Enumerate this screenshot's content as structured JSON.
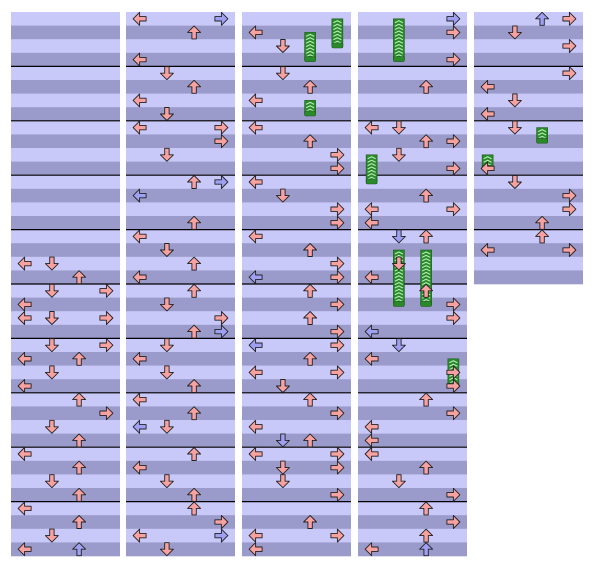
{
  "chart_data": {
    "type": "step-chart",
    "lane_order": [
      "left",
      "down",
      "up",
      "right"
    ],
    "rows_per_measure": 4,
    "colors": {
      "row_light": "#c9c9f9",
      "row_dark": "#9b9bcb",
      "measure_line": "#000000",
      "arrow_red": "#f7a1a1",
      "arrow_blue": "#9f9ff3",
      "hold_body": "#2a8a2a",
      "hold_stripe": "#b9ecb9",
      "arrow_outline": "#222222"
    },
    "columns": [
      {
        "measures": 10,
        "notes": [
          {
            "row": 18,
            "lane": "left",
            "color": "red"
          },
          {
            "row": 18,
            "lane": "down",
            "color": "red"
          },
          {
            "row": 19,
            "lane": "up",
            "color": "red"
          },
          {
            "row": 20,
            "lane": "down",
            "color": "red"
          },
          {
            "row": 20,
            "lane": "right",
            "color": "red"
          },
          {
            "row": 21,
            "lane": "left",
            "color": "red"
          },
          {
            "row": 22,
            "lane": "down",
            "color": "red"
          },
          {
            "row": 22,
            "lane": "left",
            "color": "red"
          },
          {
            "row": 22,
            "lane": "right",
            "color": "red"
          },
          {
            "row": 24,
            "lane": "down",
            "color": "red"
          },
          {
            "row": 24,
            "lane": "right",
            "color": "red"
          },
          {
            "row": 25,
            "lane": "up",
            "color": "red"
          },
          {
            "row": 25,
            "lane": "left",
            "color": "red"
          },
          {
            "row": 26,
            "lane": "down",
            "color": "red"
          },
          {
            "row": 27,
            "lane": "left",
            "color": "red"
          },
          {
            "row": 28,
            "lane": "up",
            "color": "red"
          },
          {
            "row": 29,
            "lane": "right",
            "color": "red"
          },
          {
            "row": 30,
            "lane": "down",
            "color": "red"
          },
          {
            "row": 31,
            "lane": "up",
            "color": "red"
          },
          {
            "row": 32,
            "lane": "left",
            "color": "red"
          },
          {
            "row": 33,
            "lane": "up",
            "color": "red"
          },
          {
            "row": 34,
            "lane": "down",
            "color": "red"
          },
          {
            "row": 35,
            "lane": "up",
            "color": "red"
          },
          {
            "row": 36,
            "lane": "left",
            "color": "red"
          },
          {
            "row": 37,
            "lane": "up",
            "color": "red"
          },
          {
            "row": 38,
            "lane": "down",
            "color": "red"
          },
          {
            "row": 39,
            "lane": "left",
            "color": "red"
          },
          {
            "row": 39,
            "lane": "up",
            "color": "blue"
          }
        ],
        "holds": []
      },
      {
        "measures": 10,
        "notes": [
          {
            "row": 0,
            "lane": "left",
            "color": "red"
          },
          {
            "row": 0,
            "lane": "right",
            "color": "blue"
          },
          {
            "row": 1,
            "lane": "up",
            "color": "red"
          },
          {
            "row": 3,
            "lane": "left",
            "color": "red"
          },
          {
            "row": 4,
            "lane": "down",
            "color": "red"
          },
          {
            "row": 5,
            "lane": "up",
            "color": "red"
          },
          {
            "row": 6,
            "lane": "left",
            "color": "red"
          },
          {
            "row": 7,
            "lane": "down",
            "color": "red"
          },
          {
            "row": 8,
            "lane": "left",
            "color": "red"
          },
          {
            "row": 8,
            "lane": "right",
            "color": "red"
          },
          {
            "row": 9,
            "lane": "right",
            "color": "red"
          },
          {
            "row": 10,
            "lane": "down",
            "color": "red"
          },
          {
            "row": 12,
            "lane": "up",
            "color": "red"
          },
          {
            "row": 12,
            "lane": "right",
            "color": "blue"
          },
          {
            "row": 13,
            "lane": "left",
            "color": "blue"
          },
          {
            "row": 15,
            "lane": "up",
            "color": "red"
          },
          {
            "row": 16,
            "lane": "left",
            "color": "red"
          },
          {
            "row": 17,
            "lane": "down",
            "color": "red"
          },
          {
            "row": 18,
            "lane": "up",
            "color": "red"
          },
          {
            "row": 19,
            "lane": "left",
            "color": "red"
          },
          {
            "row": 20,
            "lane": "up",
            "color": "red"
          },
          {
            "row": 21,
            "lane": "down",
            "color": "red"
          },
          {
            "row": 22,
            "lane": "right",
            "color": "red"
          },
          {
            "row": 23,
            "lane": "up",
            "color": "red"
          },
          {
            "row": 23,
            "lane": "right",
            "color": "blue"
          },
          {
            "row": 24,
            "lane": "down",
            "color": "red"
          },
          {
            "row": 25,
            "lane": "left",
            "color": "red"
          },
          {
            "row": 26,
            "lane": "down",
            "color": "red"
          },
          {
            "row": 27,
            "lane": "up",
            "color": "red"
          },
          {
            "row": 28,
            "lane": "left",
            "color": "red"
          },
          {
            "row": 29,
            "lane": "up",
            "color": "red"
          },
          {
            "row": 30,
            "lane": "left",
            "color": "blue"
          },
          {
            "row": 30,
            "lane": "down",
            "color": "red"
          },
          {
            "row": 32,
            "lane": "up",
            "color": "red"
          },
          {
            "row": 33,
            "lane": "left",
            "color": "red"
          },
          {
            "row": 34,
            "lane": "down",
            "color": "red"
          },
          {
            "row": 35,
            "lane": "up",
            "color": "red"
          },
          {
            "row": 36,
            "lane": "up",
            "color": "red"
          },
          {
            "row": 37,
            "lane": "right",
            "color": "red"
          },
          {
            "row": 38,
            "lane": "left",
            "color": "red"
          },
          {
            "row": 38,
            "lane": "right",
            "color": "blue"
          },
          {
            "row": 39,
            "lane": "down",
            "color": "red"
          }
        ],
        "holds": []
      },
      {
        "measures": 10,
        "notes": [
          {
            "row": 1,
            "lane": "left",
            "color": "red"
          },
          {
            "row": 2,
            "lane": "down",
            "color": "red"
          },
          {
            "row": 4,
            "lane": "down",
            "color": "red"
          },
          {
            "row": 5,
            "lane": "up",
            "color": "red"
          },
          {
            "row": 6,
            "lane": "left",
            "color": "red"
          },
          {
            "row": 8,
            "lane": "left",
            "color": "red"
          },
          {
            "row": 9,
            "lane": "up",
            "color": "red"
          },
          {
            "row": 10,
            "lane": "right",
            "color": "red"
          },
          {
            "row": 11,
            "lane": "right",
            "color": "red"
          },
          {
            "row": 12,
            "lane": "left",
            "color": "red"
          },
          {
            "row": 13,
            "lane": "down",
            "color": "red"
          },
          {
            "row": 14,
            "lane": "right",
            "color": "red"
          },
          {
            "row": 15,
            "lane": "right",
            "color": "red"
          },
          {
            "row": 16,
            "lane": "left",
            "color": "red"
          },
          {
            "row": 17,
            "lane": "up",
            "color": "red"
          },
          {
            "row": 18,
            "lane": "right",
            "color": "red"
          },
          {
            "row": 19,
            "lane": "left",
            "color": "blue"
          },
          {
            "row": 19,
            "lane": "right",
            "color": "red"
          },
          {
            "row": 20,
            "lane": "up",
            "color": "red"
          },
          {
            "row": 21,
            "lane": "right",
            "color": "red"
          },
          {
            "row": 22,
            "lane": "up",
            "color": "red"
          },
          {
            "row": 23,
            "lane": "right",
            "color": "red"
          },
          {
            "row": 24,
            "lane": "right",
            "color": "red"
          },
          {
            "row": 24,
            "lane": "left",
            "color": "blue"
          },
          {
            "row": 25,
            "lane": "up",
            "color": "red"
          },
          {
            "row": 26,
            "lane": "right",
            "color": "red"
          },
          {
            "row": 26,
            "lane": "left",
            "color": "red"
          },
          {
            "row": 27,
            "lane": "down",
            "color": "red"
          },
          {
            "row": 28,
            "lane": "up",
            "color": "red"
          },
          {
            "row": 29,
            "lane": "right",
            "color": "red"
          },
          {
            "row": 30,
            "lane": "left",
            "color": "red"
          },
          {
            "row": 31,
            "lane": "down",
            "color": "blue"
          },
          {
            "row": 31,
            "lane": "up",
            "color": "red"
          },
          {
            "row": 32,
            "lane": "left",
            "color": "red"
          },
          {
            "row": 32,
            "lane": "right",
            "color": "red"
          },
          {
            "row": 33,
            "lane": "down",
            "color": "red"
          },
          {
            "row": 33,
            "lane": "right",
            "color": "red"
          },
          {
            "row": 34,
            "lane": "down",
            "color": "red"
          },
          {
            "row": 35,
            "lane": "right",
            "color": "red"
          },
          {
            "row": 37,
            "lane": "up",
            "color": "red"
          },
          {
            "row": 38,
            "lane": "left",
            "color": "red"
          },
          {
            "row": 38,
            "lane": "right",
            "color": "red"
          },
          {
            "row": 39,
            "lane": "left",
            "color": "red"
          }
        ],
        "holds": [
          {
            "start": 0,
            "end": 2,
            "lane": "right"
          },
          {
            "start": 1,
            "end": 3,
            "lane": "up"
          },
          {
            "start": 6,
            "end": 7,
            "lane": "up"
          }
        ]
      },
      {
        "measures": 10,
        "notes": [
          {
            "row": 0,
            "lane": "right",
            "color": "blue"
          },
          {
            "row": 1,
            "lane": "right",
            "color": "red"
          },
          {
            "row": 3,
            "lane": "right",
            "color": "red"
          },
          {
            "row": 5,
            "lane": "up",
            "color": "red"
          },
          {
            "row": 8,
            "lane": "down",
            "color": "red"
          },
          {
            "row": 8,
            "lane": "left",
            "color": "red"
          },
          {
            "row": 9,
            "lane": "up",
            "color": "red"
          },
          {
            "row": 9,
            "lane": "right",
            "color": "red"
          },
          {
            "row": 10,
            "lane": "down",
            "color": "red"
          },
          {
            "row": 11,
            "lane": "right",
            "color": "red"
          },
          {
            "row": 13,
            "lane": "up",
            "color": "red"
          },
          {
            "row": 14,
            "lane": "left",
            "color": "red"
          },
          {
            "row": 14,
            "lane": "right",
            "color": "red"
          },
          {
            "row": 15,
            "lane": "left",
            "color": "red"
          },
          {
            "row": 16,
            "lane": "up",
            "color": "red"
          },
          {
            "row": 16,
            "lane": "down",
            "color": "blue"
          },
          {
            "row": 18,
            "lane": "down",
            "color": "red"
          },
          {
            "row": 19,
            "lane": "left",
            "color": "red"
          },
          {
            "row": 20,
            "lane": "up",
            "color": "red"
          },
          {
            "row": 21,
            "lane": "right",
            "color": "red"
          },
          {
            "row": 22,
            "lane": "right",
            "color": "red"
          },
          {
            "row": 23,
            "lane": "left",
            "color": "blue"
          },
          {
            "row": 24,
            "lane": "down",
            "color": "blue"
          },
          {
            "row": 25,
            "lane": "left",
            "color": "red"
          },
          {
            "row": 26,
            "lane": "right",
            "color": "red"
          },
          {
            "row": 27,
            "lane": "right",
            "color": "red"
          },
          {
            "row": 28,
            "lane": "up",
            "color": "red"
          },
          {
            "row": 29,
            "lane": "right",
            "color": "red"
          },
          {
            "row": 30,
            "lane": "left",
            "color": "red"
          },
          {
            "row": 31,
            "lane": "left",
            "color": "red"
          },
          {
            "row": 32,
            "lane": "left",
            "color": "red"
          },
          {
            "row": 33,
            "lane": "up",
            "color": "red"
          },
          {
            "row": 34,
            "lane": "down",
            "color": "red"
          },
          {
            "row": 35,
            "lane": "right",
            "color": "red"
          },
          {
            "row": 36,
            "lane": "up",
            "color": "red"
          },
          {
            "row": 37,
            "lane": "right",
            "color": "red"
          },
          {
            "row": 38,
            "lane": "up",
            "color": "red"
          },
          {
            "row": 39,
            "lane": "left",
            "color": "red"
          },
          {
            "row": 39,
            "lane": "up",
            "color": "blue"
          }
        ],
        "holds": [
          {
            "start": 0,
            "end": 3,
            "lane": "down"
          },
          {
            "start": 10,
            "end": 12,
            "lane": "left"
          },
          {
            "start": 17,
            "end": 21,
            "lane": "down"
          },
          {
            "start": 17,
            "end": 21,
            "lane": "up"
          },
          {
            "start": 25,
            "end": 27,
            "lane": "right"
          }
        ]
      },
      {
        "measures": 5,
        "notes": [
          {
            "row": 0,
            "lane": "up",
            "color": "blue"
          },
          {
            "row": 0,
            "lane": "right",
            "color": "red"
          },
          {
            "row": 1,
            "lane": "down",
            "color": "red"
          },
          {
            "row": 2,
            "lane": "right",
            "color": "red"
          },
          {
            "row": 4,
            "lane": "right",
            "color": "red"
          },
          {
            "row": 5,
            "lane": "left",
            "color": "red"
          },
          {
            "row": 6,
            "lane": "down",
            "color": "red"
          },
          {
            "row": 7,
            "lane": "left",
            "color": "red"
          },
          {
            "row": 8,
            "lane": "down",
            "color": "red"
          },
          {
            "row": 11,
            "lane": "left",
            "color": "red"
          },
          {
            "row": 12,
            "lane": "down",
            "color": "red"
          },
          {
            "row": 13,
            "lane": "right",
            "color": "red"
          },
          {
            "row": 14,
            "lane": "right",
            "color": "red"
          },
          {
            "row": 15,
            "lane": "up",
            "color": "red"
          },
          {
            "row": 16,
            "lane": "up",
            "color": "red"
          },
          {
            "row": 17,
            "lane": "left",
            "color": "red"
          },
          {
            "row": 17,
            "lane": "right",
            "color": "red"
          }
        ],
        "holds": [
          {
            "start": 8,
            "end": 9,
            "lane": "up"
          },
          {
            "start": 10,
            "end": 11,
            "lane": "left"
          }
        ]
      }
    ]
  }
}
